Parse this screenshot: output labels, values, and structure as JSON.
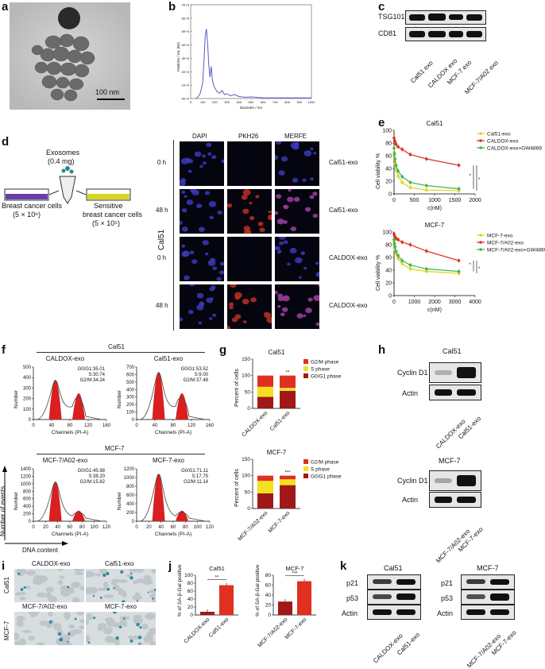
{
  "labels": {
    "a": "a",
    "b": "b",
    "c": "c",
    "d": "d",
    "e": "e",
    "f": "f",
    "g": "g",
    "h": "h",
    "i": "i",
    "j": "j",
    "k": "k"
  },
  "a": {
    "scale_bar": "100 nm"
  },
  "b": {
    "xlabel": "Diameter / nm",
    "ylabel": "Particles / mL (E5)",
    "xticks": [
      "0",
      "100",
      "200",
      "300",
      "400",
      "500",
      "600",
      "700",
      "800",
      "900",
      "1000"
    ],
    "chart_data": {
      "type": "line",
      "x": [
        40,
        60,
        80,
        100,
        110,
        120,
        130,
        140,
        150,
        160,
        170,
        180,
        190,
        200,
        220,
        240,
        260,
        280,
        300,
        330,
        360,
        400,
        450,
        500,
        600,
        700,
        800,
        900,
        1000
      ],
      "y": [
        0,
        0.1,
        0.4,
        1.2,
        2.8,
        4.6,
        5.2,
        4.2,
        2.5,
        1.6,
        2.4,
        1.4,
        1.0,
        0.8,
        0.5,
        0.4,
        0.6,
        0.3,
        0.35,
        0.2,
        0.3,
        0.15,
        0.1,
        0.12,
        0.05,
        0.05,
        0.05,
        0.05,
        0.05
      ],
      "ylim": [
        0,
        7
      ]
    }
  },
  "c": {
    "rows": [
      "TSG101",
      "CD81"
    ],
    "lanes": [
      "Cal51 exo",
      "CALDOX exo",
      "MCF-7 exo",
      "MCF-7/A02 exo"
    ]
  },
  "d": {
    "exosomes": "Exosomes",
    "dose": "(0.4 mg)",
    "left_cells": "Breast cancer cells",
    "left_count": "(5 × 10⁶)",
    "right_cells_1": "Sensitive",
    "right_cells_2": "breast cancer cells",
    "right_count": "(5 × 10⁵)",
    "columns": [
      "DAPI",
      "PKH26",
      "MERFE"
    ],
    "row_times": [
      "0 h",
      "48 h",
      "0 h",
      "48 h"
    ],
    "row_labels": [
      "Cal51-exo",
      "Cal51-exo",
      "CALDOX-exo",
      "CALDOX-exo"
    ],
    "side_label": "Cal51"
  },
  "e": {
    "panels": [
      {
        "title": "Cal51",
        "ylabel": "Cell viability %",
        "xlabel": "c(nM)",
        "xticks": [
          "0",
          "500",
          "1000",
          "1500",
          "2000"
        ],
        "yticks": [
          "0",
          "20",
          "40",
          "60",
          "80",
          "100"
        ],
        "chart_data": {
          "type": "line",
          "xlim": [
            0,
            2000
          ],
          "ylim": [
            0,
            100
          ],
          "series": [
            {
              "name": "Cal51-exo",
              "color": "#e6d21a",
              "x": [
                0,
                12,
                25,
                50,
                100,
                200,
                400,
                800,
                1600
              ],
              "y": [
                65,
                55,
                47,
                38,
                28,
                18,
                10,
                6,
                5
              ]
            },
            {
              "name": "CALDOX-exo",
              "color": "#e03020",
              "x": [
                0,
                12,
                25,
                50,
                100,
                200,
                400,
                800,
                1600
              ],
              "y": [
                88,
                84,
                82,
                78,
                74,
                70,
                62,
                55,
                45
              ]
            },
            {
              "name": "CALDOX-exo+GW4869",
              "color": "#3cb84a",
              "x": [
                0,
                12,
                25,
                50,
                100,
                200,
                400,
                800,
                1600
              ],
              "y": [
                72,
                63,
                55,
                45,
                36,
                27,
                18,
                13,
                8
              ]
            }
          ]
        }
      },
      {
        "title": "MCF-7",
        "ylabel": "Cell viability %",
        "xlabel": "c(nM)",
        "xticks": [
          "0",
          "1000",
          "2000",
          "3000",
          "4000"
        ],
        "yticks": [
          "0",
          "20",
          "40",
          "60",
          "80",
          "100"
        ],
        "chart_data": {
          "type": "line",
          "xlim": [
            0,
            4000
          ],
          "ylim": [
            0,
            100
          ],
          "series": [
            {
              "name": "MCF-7-exo",
              "color": "#e6d21a",
              "x": [
                0,
                25,
                50,
                100,
                200,
                400,
                800,
                1600,
                3200
              ],
              "y": [
                85,
                78,
                72,
                66,
                58,
                50,
                42,
                38,
                35
              ]
            },
            {
              "name": "MCF-7/A02-exo",
              "color": "#e03020",
              "x": [
                0,
                25,
                50,
                100,
                200,
                400,
                800,
                1600,
                3200
              ],
              "y": [
                97,
                94,
                92,
                90,
                88,
                84,
                80,
                70,
                55
              ]
            },
            {
              "name": "MCF-7/A02-exo+GW4869",
              "color": "#3cb84a",
              "x": [
                0,
                25,
                50,
                100,
                200,
                400,
                800,
                1600,
                3200
              ],
              "y": [
                88,
                82,
                77,
                70,
                63,
                55,
                48,
                42,
                38
              ]
            }
          ]
        }
      }
    ],
    "sig": "*"
  },
  "f": {
    "top_title": "Cal51",
    "bottom_title": "MCF-7",
    "hists": [
      {
        "title": "CALDOX-exo",
        "stats": [
          "G0/G1:35.01",
          "S:30.74",
          "G2/M:34.24"
        ],
        "yticks": [
          "0",
          "100",
          "200",
          "300",
          "400",
          "500"
        ],
        "xticks": [
          "0",
          "40",
          "80",
          "120",
          "160"
        ],
        "ylabel": "Number",
        "xlabel": "Channels (PI-A)"
      },
      {
        "title": "Cal51-exo",
        "stats": [
          "G0/G1:53.52",
          "S:9.00",
          "G2/M:37.48"
        ],
        "yticks": [
          "0",
          "100",
          "200",
          "300",
          "400",
          "500",
          "600",
          "700"
        ],
        "xticks": [
          "0",
          "40",
          "80",
          "120",
          "160"
        ],
        "ylabel": "Number",
        "xlabel": "Channels (PI-A)"
      },
      {
        "title": "MCF-7/A02-exo",
        "stats": [
          "G0/G1:45.98",
          "S:38.20",
          "G2/M:15.82"
        ],
        "yticks": [
          "0",
          "200",
          "400",
          "600",
          "800",
          "1000",
          "1200",
          "1400"
        ],
        "xticks": [
          "0",
          "20",
          "40",
          "60",
          "80",
          "100",
          "120"
        ],
        "ylabel": "Number",
        "xlabel": "Channels (PI-A)"
      },
      {
        "title": "MCF-7-exo",
        "stats": [
          "G0/G1:71.11",
          "S:17.75",
          "G2/M:11.14"
        ],
        "yticks": [
          "0",
          "200",
          "400",
          "600",
          "800",
          "1000",
          "1200"
        ],
        "xticks": [
          "0",
          "20",
          "40",
          "60",
          "80",
          "100",
          "120"
        ],
        "ylabel": "Number",
        "xlabel": "Channels (PI-A)"
      }
    ],
    "events_label": "Number of events",
    "dna_label": "DNA content"
  },
  "g": {
    "legend": [
      "G2/M phase",
      "S phase",
      "G0/G1 phase"
    ],
    "colors": [
      "#e03020",
      "#f4e020",
      "#a01818"
    ],
    "panels": [
      {
        "title": "Cal51",
        "ylabel": "Percent of cells",
        "yticks": [
          "0",
          "50",
          "100",
          "150"
        ],
        "sig": "**",
        "chart_data": {
          "type": "bar",
          "categories": [
            "CALDOX-exo",
            "Cal51-exo"
          ],
          "series": [
            {
              "name": "G0/G1 phase",
              "values": [
                35.01,
                53.52
              ]
            },
            {
              "name": "S phase",
              "values": [
                30.74,
                9.0
              ]
            },
            {
              "name": "G2/M phase",
              "values": [
                34.24,
                37.48
              ]
            }
          ],
          "ylim": [
            0,
            150
          ]
        }
      },
      {
        "title": "MCF-7",
        "ylabel": "Percent of cells",
        "yticks": [
          "0",
          "50",
          "100",
          "150"
        ],
        "sig": "***",
        "chart_data": {
          "type": "bar",
          "categories": [
            "MCF-7/A02-exo",
            "MCF-7-exo"
          ],
          "series": [
            {
              "name": "G0/G1 phase",
              "values": [
                45.98,
                71.11
              ]
            },
            {
              "name": "S phase",
              "values": [
                38.2,
                17.75
              ]
            },
            {
              "name": "G2/M phase",
              "values": [
                15.82,
                11.14
              ]
            }
          ],
          "ylim": [
            0,
            150
          ]
        }
      }
    ]
  },
  "h": {
    "panels": [
      {
        "title": "Cal51",
        "rows": [
          "Cyclin D1",
          "Actin"
        ],
        "lanes": [
          "CALDOX-exo",
          "Cal51-exo"
        ]
      },
      {
        "title": "MCF-7",
        "rows": [
          "Cyclin D1",
          "Actin"
        ],
        "lanes": [
          "MCF-7/A02-exo",
          "MCF-7-exo"
        ]
      }
    ]
  },
  "i": {
    "cols_top": [
      "CALDOX-exo",
      "Cal51-exo"
    ],
    "cols_bottom": [
      "MCF-7/A02-exo",
      "MCF-7-exo"
    ],
    "rows": [
      "Cal51",
      "MCF-7"
    ]
  },
  "j": {
    "panels": [
      {
        "title": "Cal51",
        "ylabel": "% of SA-β-Gal positive",
        "yticks": [
          "0",
          "20",
          "40",
          "60",
          "80",
          "100"
        ],
        "sig": "**",
        "chart_data": {
          "type": "bar",
          "categories": [
            "CALDOX-exo",
            "Cal51-exo"
          ],
          "values": [
            8,
            75
          ],
          "ylim": [
            0,
            100
          ]
        }
      },
      {
        "title": "MCF-7",
        "ylabel": "% of SA-β-Gal positive",
        "yticks": [
          "0",
          "20",
          "40",
          "60",
          "80"
        ],
        "sig": "***",
        "chart_data": {
          "type": "bar",
          "categories": [
            "MCF-7/A02-exo",
            "MCF-7-exo"
          ],
          "values": [
            27,
            68
          ],
          "ylim": [
            0,
            80
          ]
        }
      }
    ]
  },
  "k": {
    "panels": [
      {
        "title": "Cal51",
        "rows": [
          "p21",
          "p53",
          "Actin"
        ],
        "lanes": [
          "CALDOX-exo",
          "Cal51-exo"
        ]
      },
      {
        "title": "MCF-7",
        "rows": [
          "p21",
          "p53",
          "Actin"
        ],
        "lanes": [
          "MCF-7/A02-exo",
          "MCF-7-exo"
        ]
      }
    ]
  }
}
